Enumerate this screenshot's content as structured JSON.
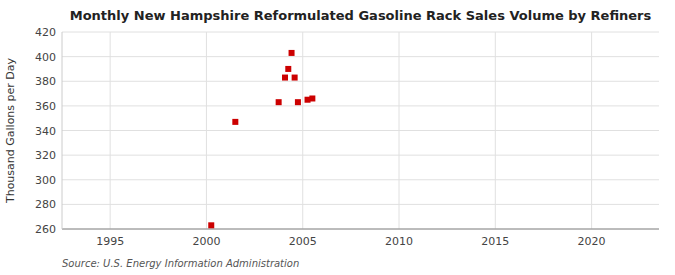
{
  "chart_data": {
    "type": "scatter",
    "title": "Monthly New Hampshire Reformulated Gasoline Rack Sales Volume by Refiners",
    "y_label": "Thousand Gallons per Day",
    "source": "Source: U.S. Energy Information Administration",
    "x": [
      2000.25,
      2001.5,
      2003.75,
      2004.08,
      2004.25,
      2004.42,
      2004.58,
      2004.75,
      2005.25,
      2005.5
    ],
    "values": [
      263,
      347,
      363,
      383,
      390,
      403,
      383,
      363,
      365,
      366
    ],
    "color": "#cc0000",
    "marker": "square",
    "xlim": [
      1992.5,
      2023.5
    ],
    "ylim": [
      260,
      420
    ],
    "xticks": [
      1995,
      2000,
      2005,
      2010,
      2015,
      2020
    ],
    "yticks": [
      260,
      280,
      300,
      320,
      340,
      360,
      380,
      400,
      420
    ],
    "grid": true
  }
}
